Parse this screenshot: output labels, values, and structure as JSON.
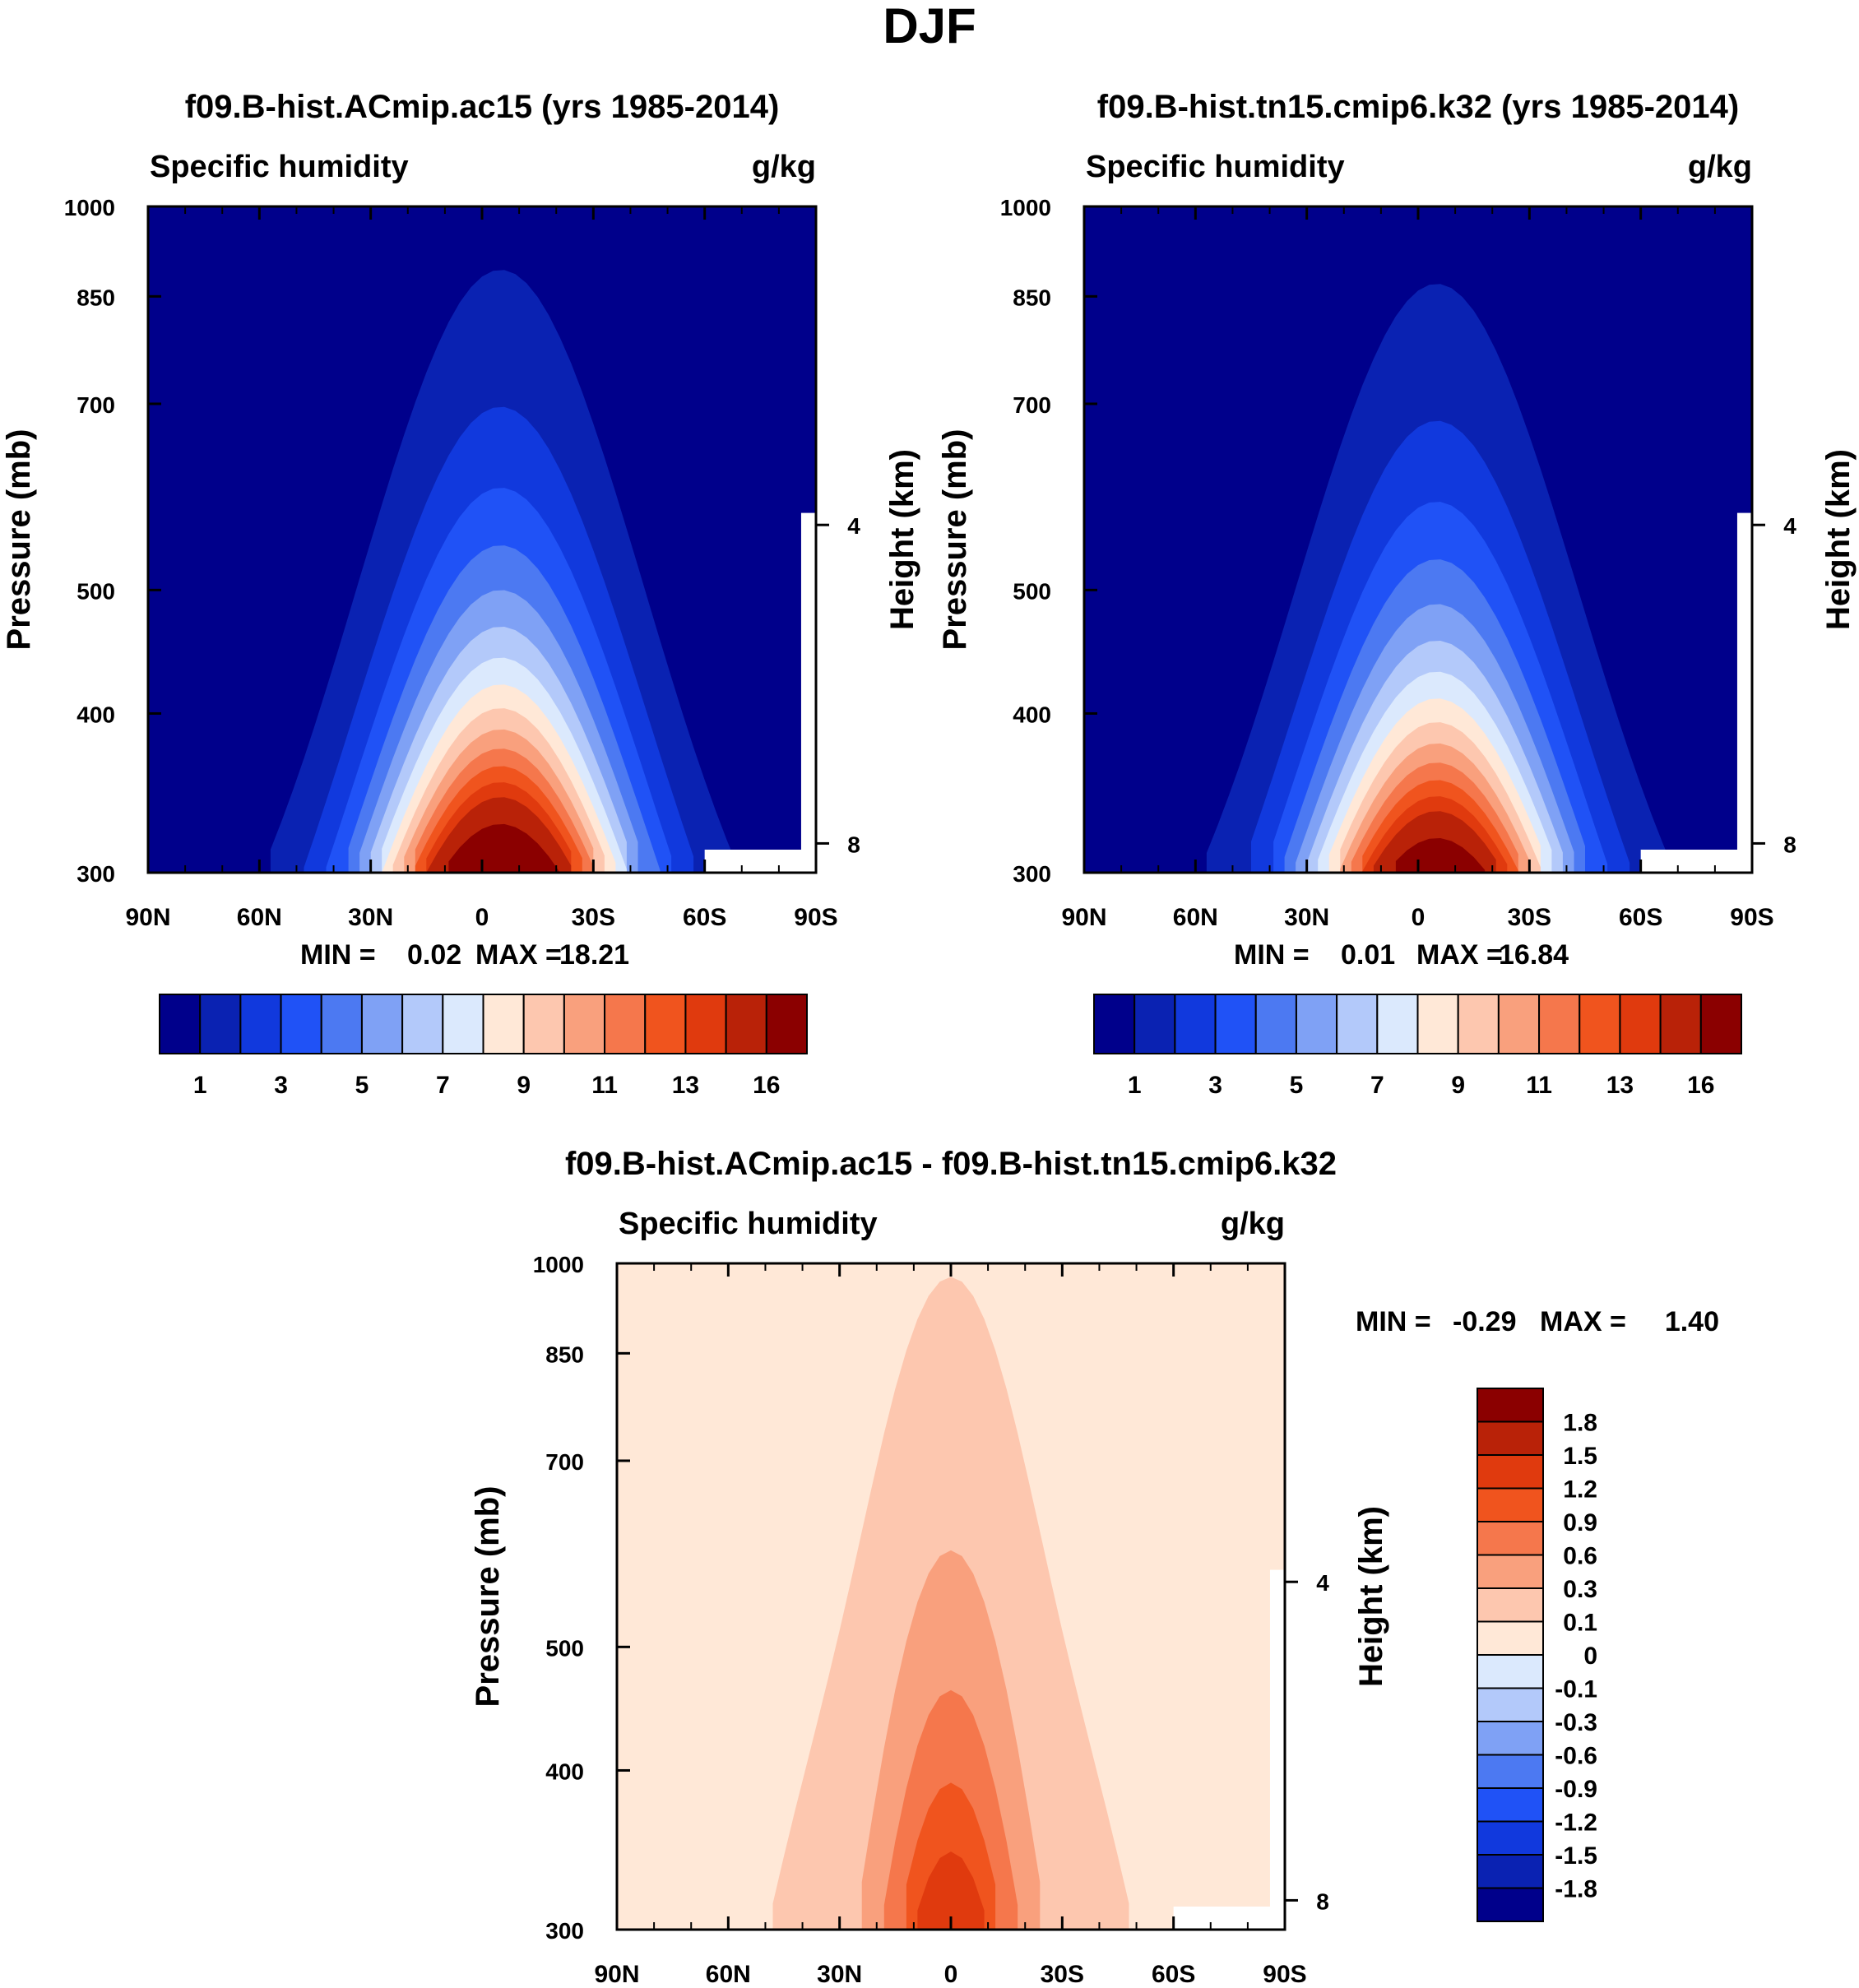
{
  "page_title": "DJF",
  "chart_data": [
    {
      "type": "heatmap",
      "title": "f09.B-hist.ACmip.ac15 (yrs 1985-2014)",
      "variable": "Specific humidity",
      "units": "g/kg",
      "xlabel": "",
      "ylabel": "Pressure (mb)",
      "y2label": "Height (km)",
      "x_ticks": [
        "90N",
        "60N",
        "30N",
        "0",
        "30S",
        "60S",
        "90S"
      ],
      "y_ticks": [
        "300",
        "400",
        "500",
        "700",
        "850",
        "1000"
      ],
      "y2_ticks": [
        "8",
        "4"
      ],
      "xlim": [
        90,
        -90
      ],
      "ylim": [
        300,
        1000
      ],
      "min": "0.02",
      "max": "18.21",
      "min_label": "MIN =",
      "max_label": "MAX =",
      "colorbar_labels": [
        "1",
        "3",
        "5",
        "7",
        "9",
        "11",
        "13",
        "16"
      ],
      "peak_value": 18.21,
      "peak_lat": -5,
      "moisture_top_mb": 365
    },
    {
      "type": "heatmap",
      "title": "f09.B-hist.tn15.cmip6.k32 (yrs 1985-2014)",
      "variable": "Specific humidity",
      "units": "g/kg",
      "xlabel": "",
      "ylabel": "Pressure (mb)",
      "y2label": "Height (km)",
      "x_ticks": [
        "90N",
        "60N",
        "30N",
        "0",
        "30S",
        "60S",
        "90S"
      ],
      "y_ticks": [
        "300",
        "400",
        "500",
        "700",
        "850",
        "1000"
      ],
      "y2_ticks": [
        "8",
        "4"
      ],
      "xlim": [
        90,
        -90
      ],
      "ylim": [
        300,
        1000
      ],
      "min": "0.01",
      "max": "16.84",
      "min_label": "MIN =",
      "max_label": "MAX =",
      "colorbar_labels": [
        "1",
        "3",
        "5",
        "7",
        "9",
        "11",
        "13",
        "16"
      ],
      "peak_value": 16.84,
      "peak_lat": -5,
      "moisture_top_mb": 380
    },
    {
      "type": "heatmap",
      "title": "f09.B-hist.ACmip.ac15 - f09.B-hist.tn15.cmip6.k32",
      "variable": "Specific humidity",
      "units": "g/kg",
      "xlabel": "",
      "ylabel": "Pressure (mb)",
      "y2label": "Height (km)",
      "x_ticks": [
        "90N",
        "60N",
        "30N",
        "0",
        "30S",
        "60S",
        "90S"
      ],
      "y_ticks": [
        "300",
        "400",
        "500",
        "700",
        "850",
        "1000"
      ],
      "y2_ticks": [
        "8",
        "4"
      ],
      "xlim": [
        90,
        -90
      ],
      "ylim": [
        300,
        1000
      ],
      "min": "-0.29",
      "max": "1.40",
      "min_label": "MIN =",
      "max_label": "MAX =",
      "colorbar_labels": [
        "1.8",
        "1.5",
        "1.2",
        "0.9",
        "0.6",
        "0.3",
        "0.1",
        "0",
        "-0.1",
        "-0.3",
        "-0.6",
        "-0.9",
        "-1.2",
        "-1.5",
        "-1.8"
      ],
      "peak_value": 1.4,
      "peak_lat": 0
    }
  ],
  "colors": {
    "abs_levels": [
      "#00008b",
      "#0a22b2",
      "#1139dd",
      "#2052f6",
      "#4c79f2",
      "#7fa1f5",
      "#b3c9fa",
      "#dbe9fd",
      "#ffe8d7",
      "#fdc7af",
      "#f9a07d",
      "#f5774c",
      "#f0541e",
      "#e03a0e",
      "#b92208",
      "#8b0000"
    ],
    "diff_levels": [
      "#00008b",
      "#0a22b2",
      "#1139dd",
      "#2052f6",
      "#4c79f2",
      "#7fa1f5",
      "#b3c9fa",
      "#dbe9fd",
      "#ffe8d7",
      "#fdc7af",
      "#f9a07d",
      "#f5774c",
      "#f0541e",
      "#e03a0e",
      "#b92208",
      "#8b0000"
    ]
  }
}
